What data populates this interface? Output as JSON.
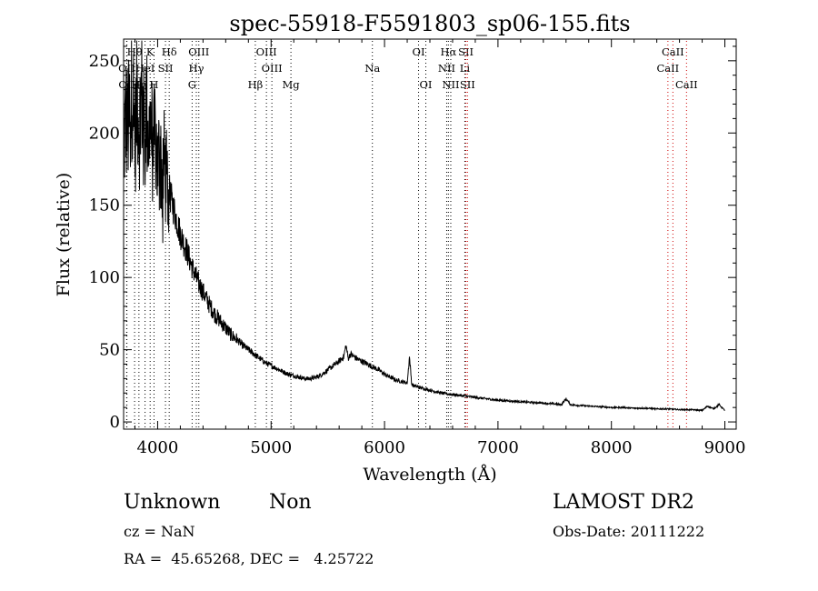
{
  "chart_data": {
    "type": "line",
    "title": "spec-55918-F5591803_sp06-155.fits",
    "xlabel": "Wavelength (Å)",
    "ylabel": "Flux (relative)",
    "xlim": [
      3700,
      9100
    ],
    "ylim": [
      -5,
      265
    ],
    "xticks": [
      4000,
      5000,
      6000,
      7000,
      8000,
      9000
    ],
    "yticks": [
      0,
      50,
      100,
      150,
      200,
      250
    ],
    "grid": false,
    "series": [
      {
        "x": [
          3700,
          3720,
          3740,
          3760,
          3780,
          3800,
          3820,
          3840,
          3860,
          3880,
          3900,
          3920,
          3940,
          3960,
          3980,
          4000,
          4020,
          4040,
          4060,
          4080,
          4100,
          4150,
          4200,
          4250,
          4300,
          4350,
          4400,
          4450,
          4500,
          4550,
          4600,
          4650,
          4700,
          4750,
          4800,
          4850,
          4900,
          4950,
          5000,
          5050,
          5100,
          5150,
          5200,
          5250,
          5300,
          5350,
          5400,
          5450,
          5500,
          5550,
          5600,
          5640,
          5660,
          5680,
          5700,
          5750,
          5800,
          5850,
          5900,
          5950,
          6000,
          6050,
          6100,
          6150,
          6200,
          6220,
          6240,
          6260,
          6300,
          6400,
          6500,
          6600,
          6700,
          6800,
          6900,
          7000,
          7100,
          7200,
          7300,
          7400,
          7500,
          7560,
          7600,
          7640,
          7700,
          7800,
          7900,
          8000,
          8100,
          8200,
          8300,
          8400,
          8500,
          8600,
          8700,
          8800,
          8850,
          8900,
          8950,
          9000
        ],
        "y": [
          190,
          210,
          205,
          215,
          235,
          195,
          225,
          205,
          230,
          200,
          220,
          195,
          210,
          185,
          200,
          175,
          190,
          170,
          180,
          165,
          160,
          145,
          130,
          120,
          108,
          98,
          90,
          82,
          75,
          70,
          65,
          60,
          57,
          53,
          50,
          47,
          44,
          41,
          39,
          37,
          35,
          33,
          32,
          31,
          30,
          30,
          31,
          33,
          36,
          39,
          42,
          45,
          53,
          44,
          47,
          44,
          42,
          40,
          38,
          36,
          33,
          31,
          29,
          28,
          27,
          45,
          26,
          25,
          24,
          22,
          20,
          19,
          18,
          17,
          16,
          15,
          14.5,
          14,
          13.5,
          13,
          12.5,
          12,
          16,
          12,
          11.5,
          11,
          10.5,
          10,
          10,
          9.5,
          9.5,
          9,
          9,
          8.5,
          8.5,
          8,
          11,
          9,
          12,
          8
        ]
      }
    ],
    "spectral_lines": [
      {
        "label": "Hθ",
        "x": 3797,
        "row": 1,
        "color": "#000000"
      },
      {
        "label": "K",
        "x": 3934,
        "row": 1,
        "color": "#000000"
      },
      {
        "label": "Hδ",
        "x": 4102,
        "row": 1,
        "color": "#000000"
      },
      {
        "label": "OIII",
        "x": 4363,
        "row": 1,
        "color": "#000000"
      },
      {
        "label": "OIII",
        "x": 4959,
        "row": 1,
        "color": "#000000"
      },
      {
        "label": "OI",
        "x": 6300,
        "row": 1,
        "color": "#000000"
      },
      {
        "label": "Hα",
        "x": 6563,
        "row": 1,
        "color": "#000000"
      },
      {
        "label": "SII",
        "x": 6717,
        "row": 1,
        "color": "#cc0000"
      },
      {
        "label": "CaII",
        "x": 8542,
        "row": 1,
        "color": "#cc0000"
      },
      {
        "label": "OII",
        "x": 3727,
        "row": 2,
        "color": "#000000"
      },
      {
        "label": "HeI",
        "x": 3889,
        "row": 2,
        "color": "#000000"
      },
      {
        "label": "SII",
        "x": 4069,
        "row": 2,
        "color": "#000000"
      },
      {
        "label": "Hγ",
        "x": 4341,
        "row": 2,
        "color": "#000000"
      },
      {
        "label": "OIII",
        "x": 5007,
        "row": 2,
        "color": "#000000"
      },
      {
        "label": "Na",
        "x": 5893,
        "row": 2,
        "color": "#000000"
      },
      {
        "label": "NII",
        "x": 6548,
        "row": 2,
        "color": "#000000"
      },
      {
        "label": "Li",
        "x": 6708,
        "row": 2,
        "color": "#000000"
      },
      {
        "label": "CaII",
        "x": 8498,
        "row": 2,
        "color": "#cc0000"
      },
      {
        "label": "OII",
        "x": 3729,
        "row": 3,
        "color": "#000000"
      },
      {
        "label": "Hη",
        "x": 3835,
        "row": 3,
        "color": "#000000"
      },
      {
        "label": "H",
        "x": 3968,
        "row": 3,
        "color": "#000000"
      },
      {
        "label": "G",
        "x": 4304,
        "row": 3,
        "color": "#000000"
      },
      {
        "label": "Hβ",
        "x": 4861,
        "row": 3,
        "color": "#000000"
      },
      {
        "label": "Mg",
        "x": 5175,
        "row": 3,
        "color": "#000000"
      },
      {
        "label": "OI",
        "x": 6364,
        "row": 3,
        "color": "#000000"
      },
      {
        "label": "NII",
        "x": 6584,
        "row": 3,
        "color": "#000000"
      },
      {
        "label": "SII",
        "x": 6731,
        "row": 3,
        "color": "#cc0000"
      },
      {
        "label": "CaII",
        "x": 8662,
        "row": 3,
        "color": "#cc0000"
      }
    ]
  },
  "info": {
    "class_label": "Unknown",
    "subclass_label": "Non",
    "survey": "LAMOST DR2",
    "cz": "cz = NaN",
    "obs_date": "Obs-Date: 20111222",
    "coords": "RA =  45.65268, DEC =   4.25722"
  }
}
